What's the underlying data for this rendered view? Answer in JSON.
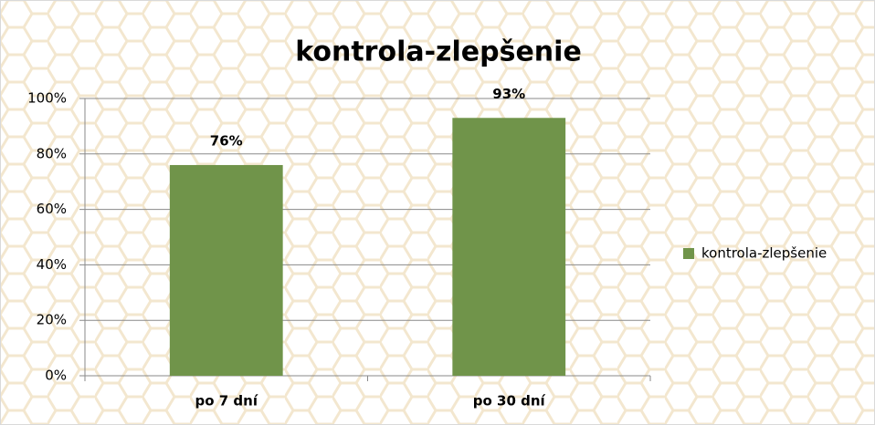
{
  "chart_data": {
    "type": "bar",
    "title": "kontrola-zlepšenie",
    "categories": [
      "po 7 dní",
      "po 30 dní"
    ],
    "series": [
      {
        "name": "kontrola-zlepšenie",
        "color": "#70944a",
        "values": [
          76,
          93
        ],
        "value_labels": [
          "76%",
          "93%"
        ]
      }
    ],
    "ylim": [
      0,
      100
    ],
    "yticks": [
      {
        "value": 0,
        "label": "0%"
      },
      {
        "value": 20,
        "label": "20%"
      },
      {
        "value": 40,
        "label": "40%"
      },
      {
        "value": 60,
        "label": "60%"
      },
      {
        "value": 80,
        "label": "80%"
      },
      {
        "value": 100,
        "label": "100%"
      }
    ],
    "grid": true,
    "legend": "right"
  }
}
